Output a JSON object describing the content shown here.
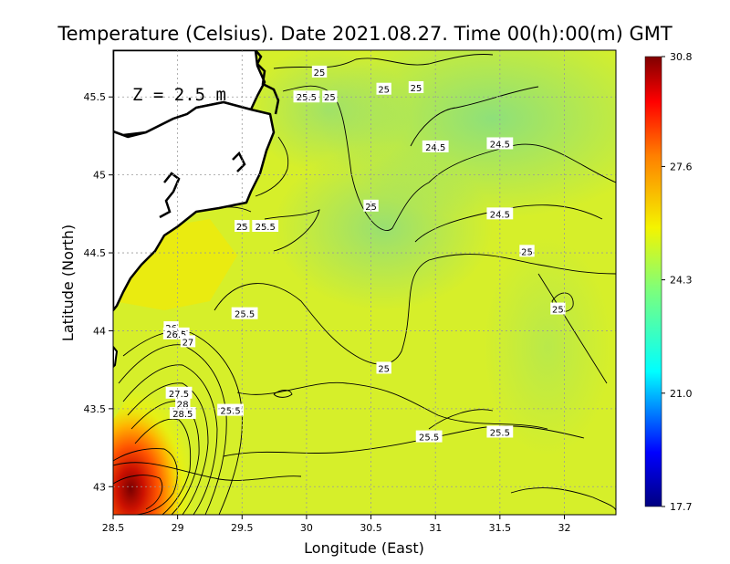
{
  "chart_data": {
    "type": "heatmap",
    "title": "Temperature (Celsius). Date 2021.08.27. Time 00(h):00(m)  GMT",
    "xlabel": "Longitude (East)",
    "ylabel": "Latitude (North)",
    "depth_label": "Z = 2.5 m",
    "xlim": [
      28.5,
      32.4
    ],
    "ylim": [
      42.82,
      45.8
    ],
    "x_ticks": [
      28.5,
      29,
      29.5,
      30,
      30.5,
      31,
      31.5,
      32
    ],
    "x_tick_labels": [
      "28.5",
      "29",
      "29.5",
      "30",
      "30.5",
      "31",
      "31.5",
      "32"
    ],
    "y_ticks": [
      43,
      43.5,
      44,
      44.5,
      45,
      45.5
    ],
    "y_tick_labels": [
      "43",
      "43.5",
      "44",
      "44.5",
      "45",
      "45.5"
    ],
    "grid": true,
    "colorbar": {
      "min": 17.7,
      "max": 30.8,
      "tick_values": [
        30.8,
        27.6,
        24.3,
        21.0,
        17.7
      ],
      "tick_labels": [
        "30.8",
        "27.6",
        "24.3",
        "21.0",
        "17.7"
      ]
    },
    "contour_labels": [
      {
        "text": "25",
        "lon": 30.1,
        "lat": 45.66
      },
      {
        "text": "25.5",
        "lon": 30.0,
        "lat": 45.5
      },
      {
        "text": "25",
        "lon": 30.18,
        "lat": 45.5
      },
      {
        "text": "25",
        "lon": 30.6,
        "lat": 45.55
      },
      {
        "text": "25",
        "lon": 30.85,
        "lat": 45.56
      },
      {
        "text": "24.5",
        "lon": 31.0,
        "lat": 45.18
      },
      {
        "text": "24.5",
        "lon": 31.5,
        "lat": 45.2
      },
      {
        "text": "25",
        "lon": 30.5,
        "lat": 44.8
      },
      {
        "text": "24.5",
        "lon": 31.5,
        "lat": 44.75
      },
      {
        "text": "25",
        "lon": 29.5,
        "lat": 44.67
      },
      {
        "text": "25.5",
        "lon": 29.68,
        "lat": 44.67
      },
      {
        "text": "25",
        "lon": 31.71,
        "lat": 44.51
      },
      {
        "text": "25",
        "lon": 31.95,
        "lat": 44.14
      },
      {
        "text": "25.5",
        "lon": 29.52,
        "lat": 44.11
      },
      {
        "text": "26",
        "lon": 28.95,
        "lat": 44.02
      },
      {
        "text": "26.5",
        "lon": 28.99,
        "lat": 43.98
      },
      {
        "text": "27",
        "lon": 29.08,
        "lat": 43.93
      },
      {
        "text": "27.5",
        "lon": 29.01,
        "lat": 43.6
      },
      {
        "text": "28",
        "lon": 29.04,
        "lat": 43.53
      },
      {
        "text": "28.5",
        "lon": 29.04,
        "lat": 43.47
      },
      {
        "text": "25.5",
        "lon": 29.41,
        "lat": 43.49
      },
      {
        "text": "25",
        "lon": 30.6,
        "lat": 43.76
      },
      {
        "text": "25.5",
        "lon": 30.95,
        "lat": 43.32
      },
      {
        "text": "25.5",
        "lon": 31.5,
        "lat": 43.35
      }
    ]
  }
}
